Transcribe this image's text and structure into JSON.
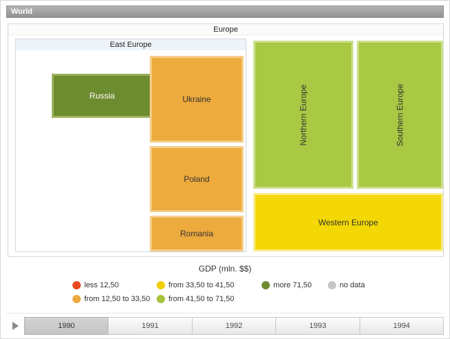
{
  "breadcrumb": {
    "label": "World"
  },
  "treemap": {
    "europe_label": "Europe",
    "east_europe_label": "East Europe",
    "nodes": [
      {
        "id": "russia",
        "label": "Russia",
        "range": "more 71,50"
      },
      {
        "id": "ukraine",
        "label": "Ukraine",
        "range": "from 12,50 to 33,50"
      },
      {
        "id": "poland",
        "label": "Poland",
        "range": "from 12,50 to 33,50"
      },
      {
        "id": "romania",
        "label": "Romania",
        "range": "from 12,50 to 33,50"
      },
      {
        "id": "northern",
        "label": "Northern Europe",
        "range": "from 41,50 to 71,50"
      },
      {
        "id": "southern",
        "label": "Southern Europe",
        "range": "from 41,50 to 71,50"
      },
      {
        "id": "western",
        "label": "Western Europe",
        "range": "from 33,50 to 41,50"
      }
    ]
  },
  "legend": {
    "title": "GDP (mln. $$)",
    "items": [
      {
        "label": "less 12,50",
        "color": "#e8491f"
      },
      {
        "label": "from 12,50 to 33,50",
        "color": "#edaa3d"
      },
      {
        "label": "from 33,50 to 41,50",
        "color": "#f0cf05"
      },
      {
        "label": "from 41,50 to 71,50",
        "color": "#a7c33c"
      },
      {
        "label": "more 71,50",
        "color": "#6d8b2f"
      },
      {
        "label": "no data",
        "color": "#c6c6c6"
      }
    ]
  },
  "timeline": {
    "years": [
      "1990",
      "1991",
      "1992",
      "1993",
      "1994"
    ],
    "selected": "1990"
  },
  "colors": {
    "russia_fill": "#6d8b2f",
    "russia_border": "#9cb05e",
    "orange_fill": "#edaa3d",
    "orange_border": "#f4cf8b",
    "green_fill": "#a9c843",
    "green_border": "#cde18f",
    "yellow_fill": "#f3d805",
    "yellow_border": "#f8ec8d"
  },
  "chart_data": {
    "type": "treemap",
    "title": "GDP (mln. $$)",
    "breadcrumb": "World",
    "current_year": "1990",
    "hierarchy": {
      "name": "Europe",
      "children": [
        {
          "name": "East Europe",
          "children": [
            {
              "name": "Russia",
              "color_range": "more 71,50"
            },
            {
              "name": "Ukraine",
              "color_range": "from 12,50 to 33,50"
            },
            {
              "name": "Poland",
              "color_range": "from 12,50 to 33,50"
            },
            {
              "name": "Romania",
              "color_range": "from 12,50 to 33,50"
            }
          ]
        },
        {
          "name": "Northern Europe",
          "color_range": "from 41,50 to 71,50"
        },
        {
          "name": "Southern Europe",
          "color_range": "from 41,50 to 71,50"
        },
        {
          "name": "Western Europe",
          "color_range": "from 33,50 to 41,50"
        }
      ]
    },
    "legend_ranges": [
      "less 12,50",
      "from 12,50 to 33,50",
      "from 33,50 to 41,50",
      "from 41,50 to 71,50",
      "more 71,50",
      "no data"
    ],
    "timeline_years": [
      "1990",
      "1991",
      "1992",
      "1993",
      "1994"
    ]
  }
}
